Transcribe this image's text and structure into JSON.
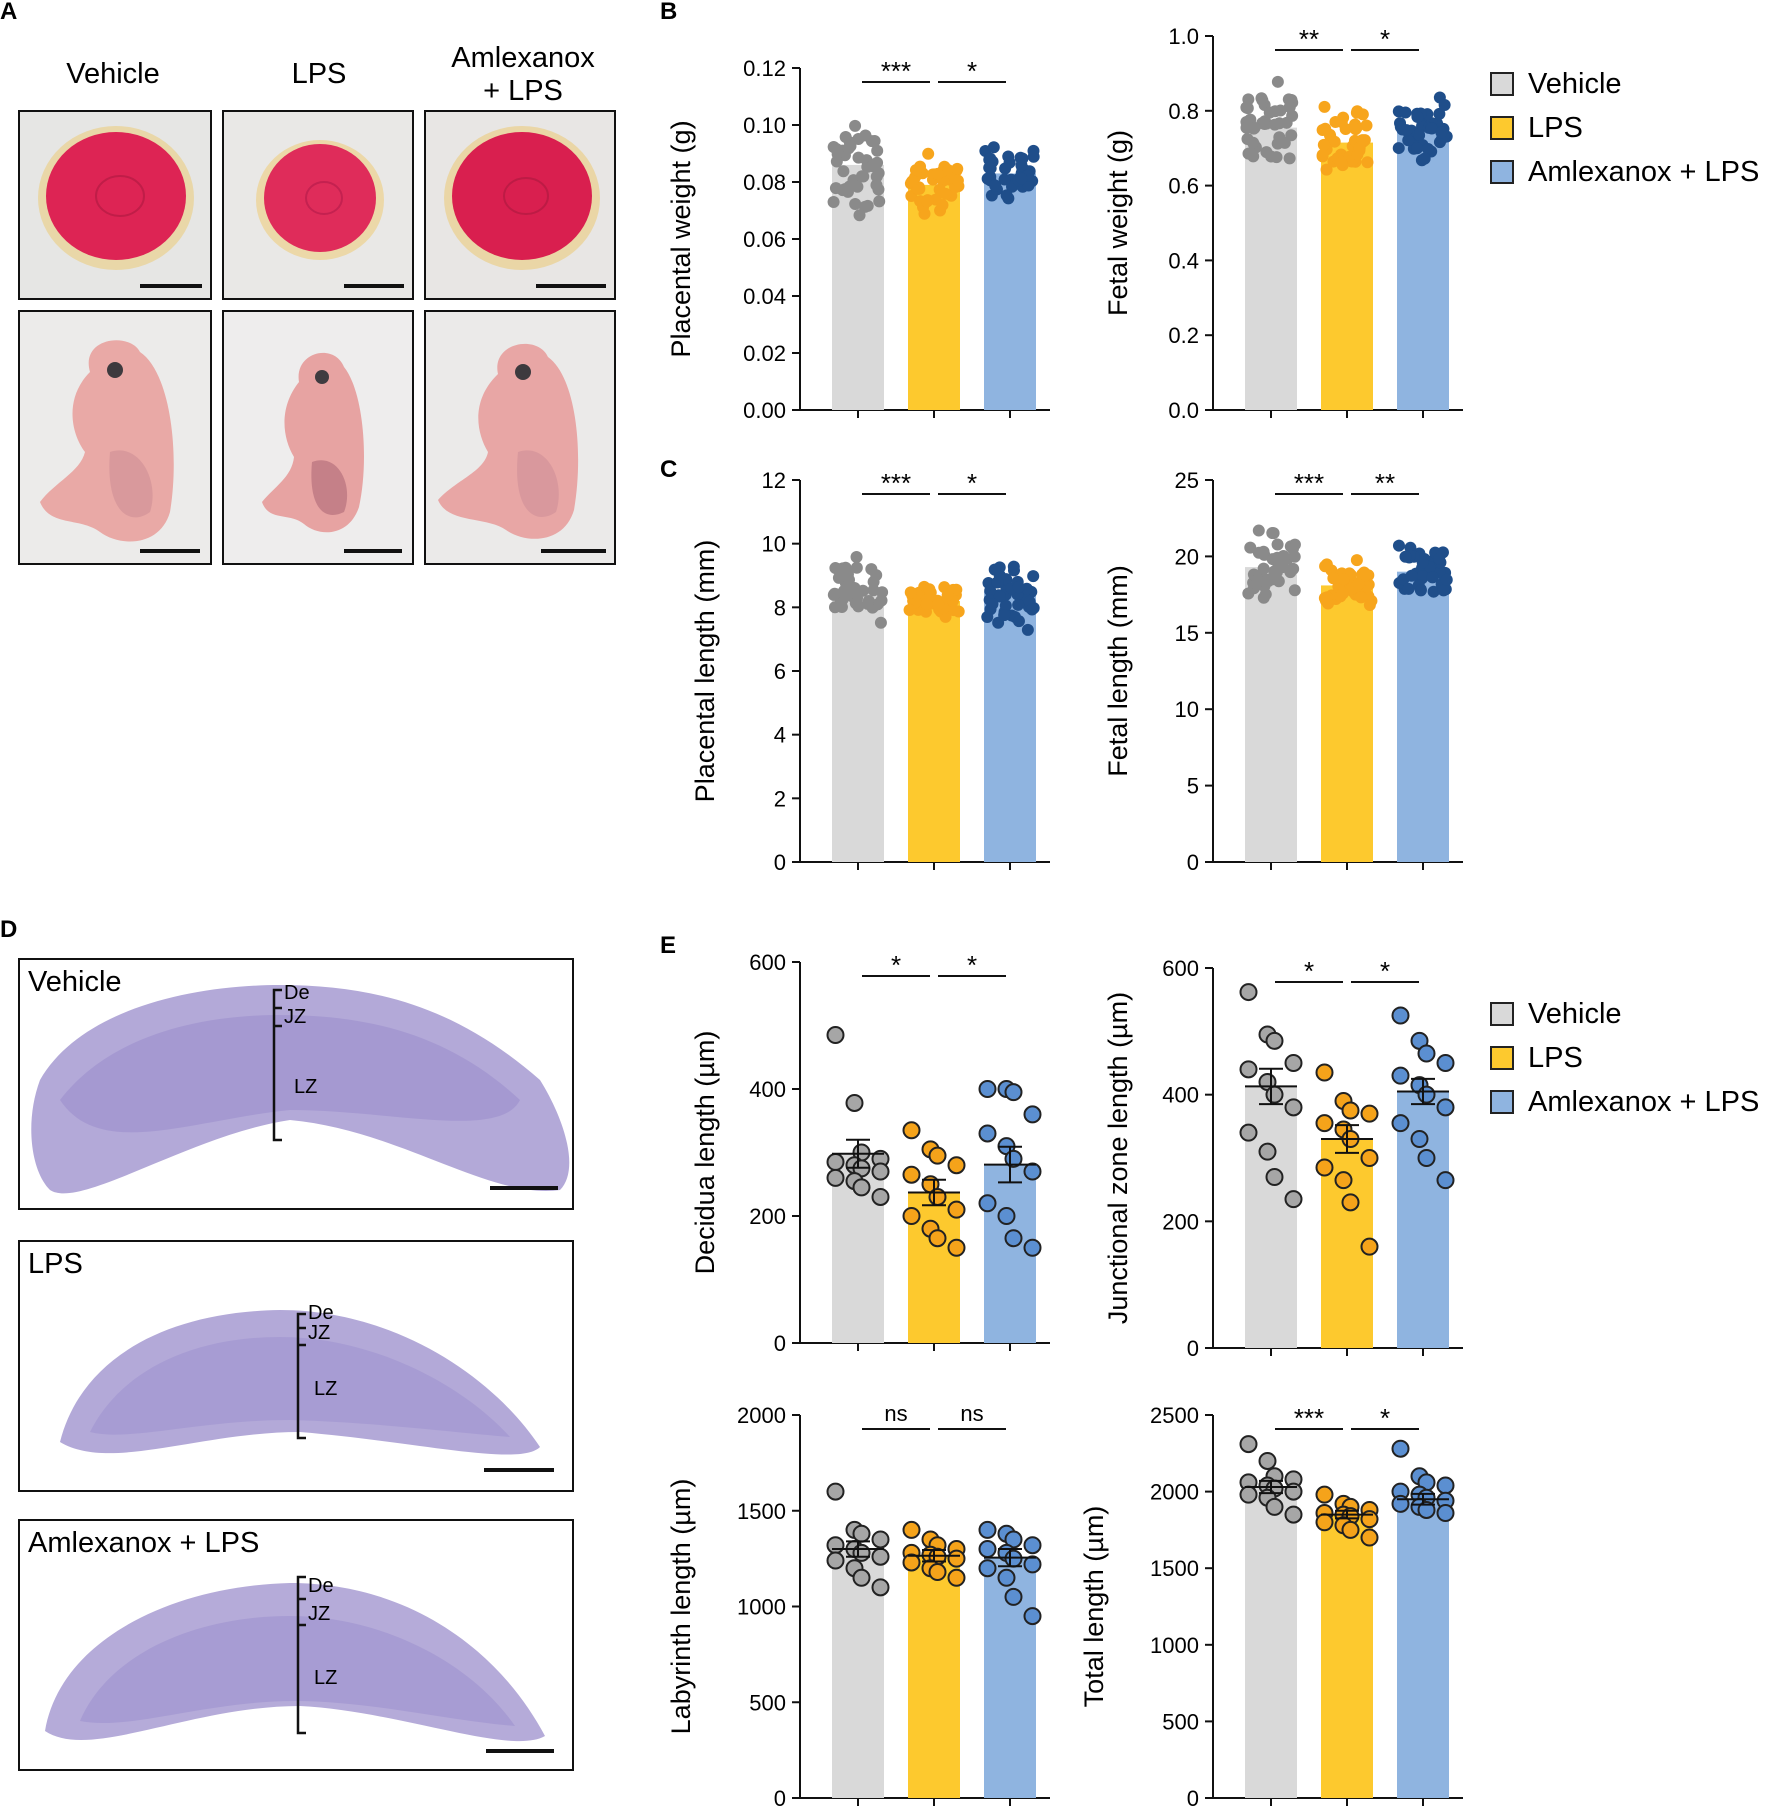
{
  "panels": {
    "A": "A",
    "B": "B",
    "C": "C",
    "D": "D",
    "E": "E"
  },
  "panelA": {
    "columns": [
      "Vehicle",
      "LPS",
      "Amlexanox\n+ LPS"
    ]
  },
  "panelD": {
    "sections": [
      {
        "label": "Vehicle",
        "zones": [
          "De",
          "JZ",
          "LZ"
        ]
      },
      {
        "label": "LPS",
        "zones": [
          "De",
          "JZ",
          "LZ"
        ]
      },
      {
        "label": "Amlexanox + LPS",
        "zones": [
          "De",
          "JZ",
          "LZ"
        ]
      }
    ]
  },
  "legend": {
    "items": [
      {
        "label": "Vehicle",
        "color": "#d9d9d9"
      },
      {
        "label": "LPS",
        "color": "#fdc92e"
      },
      {
        "label": "Amlexanox + LPS",
        "color": "#8fb4e0"
      }
    ]
  },
  "colors": {
    "bars": [
      "#d9d9d9",
      "#fdc92e",
      "#8fb4e0"
    ],
    "dots_dense": [
      "#8a8a8a",
      "#f7a51c",
      "#1f4e8a"
    ],
    "dots_open": [
      "#a6a6a6",
      "#f5a31a",
      "#5b8fd1"
    ]
  },
  "chart_data": [
    {
      "type": "bar",
      "id": "placental-weight",
      "ylabel": "Placental weight (g)",
      "ylim": [
        0,
        0.12
      ],
      "ticks": [
        "0.00",
        "0.02",
        "0.04",
        "0.06",
        "0.08",
        "0.10",
        "0.12"
      ],
      "tick_values": [
        0,
        0.02,
        0.04,
        0.06,
        0.08,
        0.1,
        0.12
      ],
      "categories": [
        "Vehicle",
        "LPS",
        "Amlexanox + LPS"
      ],
      "values": [
        0.086,
        0.079,
        0.083
      ],
      "spread": [
        0.018,
        0.011,
        0.01
      ],
      "dots": "dense",
      "significance": [
        "***",
        "*"
      ]
    },
    {
      "type": "bar",
      "id": "fetal-weight",
      "ylabel": "Fetal weight (g)",
      "ylim": [
        0,
        1.0
      ],
      "ticks": [
        "0.0",
        "0.2",
        "0.4",
        "0.6",
        "0.8",
        "1.0"
      ],
      "tick_values": [
        0,
        0.2,
        0.4,
        0.6,
        0.8,
        1.0
      ],
      "categories": [
        "Vehicle",
        "LPS",
        "Amlexanox + LPS"
      ],
      "values": [
        0.755,
        0.715,
        0.75
      ],
      "spread": [
        0.14,
        0.1,
        0.09
      ],
      "dots": "dense",
      "significance": [
        "**",
        "*"
      ]
    },
    {
      "type": "bar",
      "id": "placental-length",
      "ylabel": "Placental length (mm)",
      "ylim": [
        0,
        12
      ],
      "ticks": [
        "0",
        "2",
        "4",
        "6",
        "8",
        "10",
        "12"
      ],
      "tick_values": [
        0,
        2,
        4,
        6,
        8,
        10,
        12
      ],
      "categories": [
        "Vehicle",
        "LPS",
        "Amlexanox + LPS"
      ],
      "values": [
        8.6,
        8.2,
        8.5
      ],
      "spread": [
        1.1,
        0.5,
        1.4
      ],
      "dots": "dense",
      "significance": [
        "***",
        "*"
      ]
    },
    {
      "type": "bar",
      "id": "fetal-length",
      "ylabel": "Fetal length (mm)",
      "ylim": [
        0,
        25
      ],
      "ticks": [
        "0",
        "5",
        "10",
        "15",
        "20",
        "25"
      ],
      "tick_values": [
        0,
        5,
        10,
        15,
        20,
        25
      ],
      "categories": [
        "Vehicle",
        "LPS",
        "Amlexanox + LPS"
      ],
      "values": [
        19.3,
        18.1,
        19.0
      ],
      "spread": [
        2.4,
        1.8,
        2.2
      ],
      "dots": "dense",
      "significance": [
        "***",
        "**"
      ]
    },
    {
      "type": "bar",
      "id": "decidua-length",
      "ylabel": "Decidua length (µm)",
      "ylim": [
        0,
        600
      ],
      "ticks": [
        "0",
        "200",
        "400",
        "600"
      ],
      "tick_values": [
        0,
        200,
        400,
        600
      ],
      "categories": [
        "Vehicle",
        "LPS",
        "Amlexanox + LPS"
      ],
      "values": [
        298,
        237,
        281
      ],
      "error": [
        22,
        20,
        28
      ],
      "points": [
        [
          485,
          378,
          300,
          290,
          285,
          280,
          275,
          270,
          260,
          255,
          245,
          230
        ],
        [
          335,
          305,
          295,
          280,
          265,
          250,
          230,
          210,
          200,
          180,
          165,
          150
        ],
        [
          400,
          400,
          395,
          360,
          330,
          310,
          290,
          270,
          220,
          200,
          165,
          150
        ]
      ],
      "dots": "open",
      "significance": [
        "*",
        "*"
      ]
    },
    {
      "type": "bar",
      "id": "junctional-zone-length",
      "ylabel": "Junctional zone length (µm)",
      "ylim": [
        0,
        600
      ],
      "ticks": [
        "0",
        "200",
        "400",
        "600"
      ],
      "tick_values": [
        0,
        200,
        400,
        600
      ],
      "categories": [
        "Vehicle",
        "LPS",
        "Amlexanox + LPS"
      ],
      "values": [
        413,
        330,
        405
      ],
      "error": [
        28,
        22,
        20
      ],
      "points": [
        [
          562,
          495,
          485,
          450,
          440,
          420,
          400,
          380,
          340,
          310,
          270,
          235
        ],
        [
          435,
          390,
          375,
          370,
          355,
          345,
          330,
          300,
          285,
          265,
          230,
          160
        ],
        [
          525,
          485,
          465,
          450,
          430,
          415,
          400,
          380,
          355,
          330,
          300,
          265
        ]
      ],
      "dots": "open",
      "significance": [
        "*",
        "*"
      ]
    },
    {
      "type": "bar",
      "id": "labyrinth-length",
      "ylabel": "Labyrinth length (µm)",
      "ylim": [
        0,
        2000
      ],
      "ticks": [
        "0",
        "500",
        "1000",
        "1500",
        "2000"
      ],
      "tick_values": [
        0,
        500,
        1000,
        1500,
        2000
      ],
      "categories": [
        "Vehicle",
        "LPS",
        "Amlexanox + LPS"
      ],
      "values": [
        1300,
        1265,
        1255
      ],
      "error": [
        40,
        30,
        45
      ],
      "points": [
        [
          1600,
          1400,
          1380,
          1350,
          1320,
          1300,
          1280,
          1260,
          1240,
          1200,
          1150,
          1100
        ],
        [
          1400,
          1350,
          1320,
          1300,
          1280,
          1270,
          1260,
          1250,
          1230,
          1200,
          1180,
          1150
        ],
        [
          1400,
          1380,
          1350,
          1320,
          1300,
          1280,
          1250,
          1220,
          1200,
          1150,
          1050,
          950
        ]
      ],
      "dots": "open",
      "significance": [
        "ns",
        "ns"
      ]
    },
    {
      "type": "bar",
      "id": "total-length",
      "ylabel": "Total length (µm)",
      "ylim": [
        0,
        2500
      ],
      "ticks": [
        "0",
        "500",
        "1000",
        "1500",
        "2000",
        "2500"
      ],
      "tick_values": [
        0,
        500,
        1000,
        1500,
        2000,
        2500
      ],
      "categories": [
        "Vehicle",
        "LPS",
        "Amlexanox + LPS"
      ],
      "values": [
        2030,
        1850,
        1950
      ],
      "error": [
        40,
        25,
        35
      ],
      "points": [
        [
          2310,
          2200,
          2100,
          2080,
          2060,
          2040,
          2020,
          2000,
          1980,
          1960,
          1900,
          1850
        ],
        [
          1980,
          1920,
          1900,
          1880,
          1860,
          1850,
          1840,
          1820,
          1800,
          1780,
          1750,
          1700
        ],
        [
          2280,
          2100,
          2060,
          2040,
          2000,
          1980,
          1960,
          1940,
          1920,
          1900,
          1880,
          1860
        ]
      ],
      "dots": "open",
      "significance": [
        "***",
        "*"
      ]
    }
  ]
}
